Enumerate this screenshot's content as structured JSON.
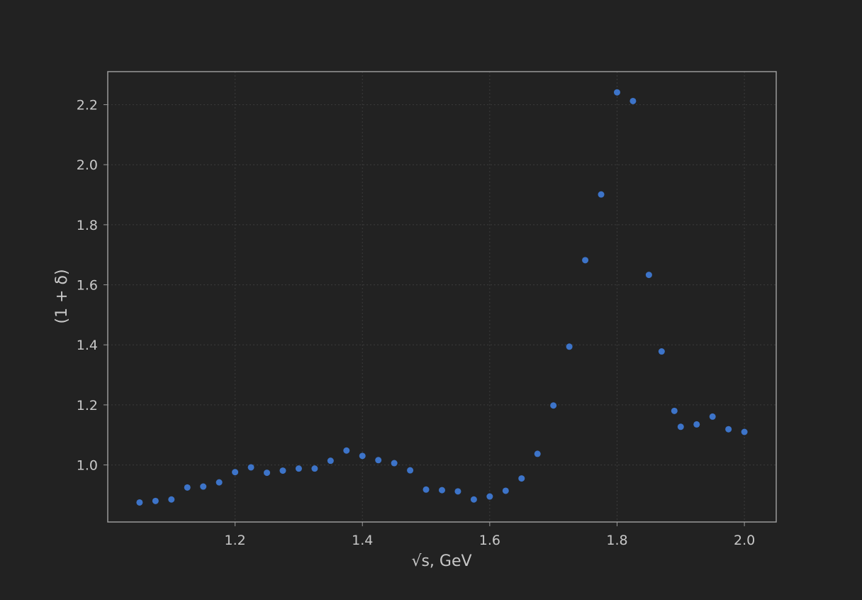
{
  "chart_data": {
    "type": "scatter",
    "title": "",
    "xlabel": "√s, GeV",
    "ylabel": "(1 + δ)",
    "xlim": [
      1.0,
      2.05
    ],
    "ylim": [
      0.81,
      2.31
    ],
    "xticks": [
      1.2,
      1.4,
      1.6,
      1.8,
      2.0
    ],
    "yticks": [
      1.0,
      1.2,
      1.4,
      1.6,
      1.8,
      2.0,
      2.2
    ],
    "xtick_labels": [
      "1.2",
      "1.4",
      "1.6",
      "1.8",
      "2.0"
    ],
    "ytick_labels": [
      "1.0",
      "1.2",
      "1.4",
      "1.6",
      "1.8",
      "2.0",
      "2.2"
    ],
    "grid": true,
    "legend": "none",
    "colors": {
      "background": "#222222",
      "frame": "#9a9a9a",
      "grid": "#3c3c3c",
      "text": "#c8c8c8",
      "marker": "#3d74c9"
    },
    "series": [
      {
        "x": [
          1.05,
          1.075,
          1.1,
          1.125,
          1.15,
          1.175,
          1.2,
          1.225,
          1.25,
          1.275,
          1.3,
          1.325,
          1.35,
          1.375,
          1.4,
          1.425,
          1.45,
          1.475,
          1.5,
          1.525,
          1.55,
          1.575,
          1.6,
          1.625,
          1.65,
          1.675,
          1.7,
          1.725,
          1.75,
          1.775,
          1.8,
          1.825,
          1.85,
          1.87,
          1.89,
          1.9,
          1.925,
          1.95,
          1.975,
          2.0
        ],
        "y": [
          0.875,
          0.88,
          0.885,
          0.925,
          0.928,
          0.942,
          0.976,
          0.992,
          0.974,
          0.981,
          0.988,
          0.988,
          1.014,
          1.048,
          1.03,
          1.016,
          1.006,
          0.982,
          0.918,
          0.916,
          0.912,
          0.885,
          0.895,
          0.914,
          0.955,
          1.037,
          1.198,
          1.394,
          1.682,
          1.901,
          2.241,
          2.212,
          1.633,
          1.378,
          1.18,
          1.127,
          1.135,
          1.161,
          1.119,
          1.11
        ]
      }
    ]
  }
}
